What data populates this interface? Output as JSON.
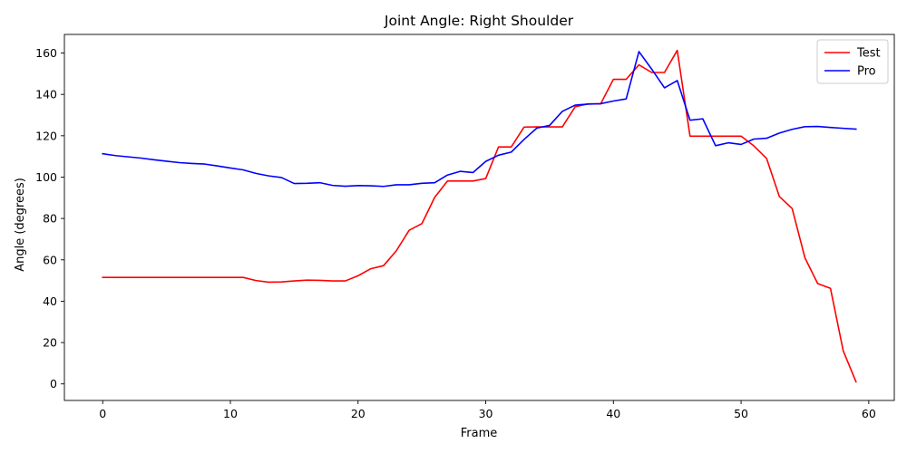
{
  "chart_data": {
    "type": "line",
    "title": "Joint Angle: Right Shoulder",
    "xlabel": "Frame",
    "ylabel": "Angle (degrees)",
    "xlim": [
      -3,
      62
    ],
    "ylim": [
      -8,
      169
    ],
    "xticks": [
      0,
      10,
      20,
      30,
      40,
      50,
      60
    ],
    "yticks": [
      0,
      20,
      40,
      60,
      80,
      100,
      120,
      140,
      160
    ],
    "grid": false,
    "legend_position": "top-right",
    "x": [
      0,
      1,
      2,
      3,
      4,
      5,
      6,
      7,
      8,
      9,
      10,
      11,
      12,
      13,
      14,
      15,
      16,
      17,
      18,
      19,
      20,
      21,
      22,
      23,
      24,
      25,
      26,
      27,
      28,
      29,
      30,
      31,
      32,
      33,
      34,
      35,
      36,
      37,
      38,
      39,
      40,
      41,
      42,
      43,
      44,
      45,
      46,
      47,
      48,
      49,
      50,
      51,
      52,
      53,
      54,
      55,
      56,
      57,
      58,
      59
    ],
    "series": [
      {
        "name": "Test",
        "color": "#ff0000",
        "values": [
          51.5,
          51.5,
          51.5,
          51.5,
          51.5,
          51.5,
          51.5,
          51.5,
          51.5,
          51.5,
          51.5,
          51.5,
          50.0,
          49.2,
          49.3,
          49.8,
          50.2,
          50.1,
          49.8,
          49.8,
          52.3,
          55.7,
          57.2,
          64.4,
          74.3,
          77.5,
          90.2,
          98.1,
          98.1,
          98.1,
          99.3,
          114.6,
          114.6,
          124.2,
          124.3,
          124.3,
          124.3,
          134.0,
          135.4,
          135.4,
          147.3,
          147.3,
          154.3,
          150.6,
          150.6,
          161.3,
          119.8,
          119.8,
          119.8,
          119.8,
          119.8,
          115.1,
          109.0,
          90.6,
          84.8,
          61.0,
          48.5,
          46.2,
          16.0,
          1.0
        ]
      },
      {
        "name": "Pro",
        "color": "#0000ff",
        "values": [
          111.3,
          110.4,
          109.8,
          109.2,
          108.4,
          107.7,
          107.0,
          106.6,
          106.3,
          105.4,
          104.4,
          103.5,
          101.8,
          100.6,
          99.8,
          96.9,
          97.0,
          97.3,
          96.0,
          95.6,
          95.9,
          95.8,
          95.5,
          96.3,
          96.3,
          97.0,
          97.3,
          101.0,
          102.8,
          102.2,
          107.6,
          110.6,
          112.1,
          118.2,
          123.7,
          125.0,
          131.8,
          134.8,
          135.3,
          135.5,
          136.8,
          137.8,
          160.7,
          152.2,
          143.2,
          146.7,
          127.5,
          128.2,
          115.2,
          116.6,
          115.8,
          118.4,
          118.8,
          121.3,
          123.1,
          124.4,
          124.5,
          124.0,
          123.6,
          123.2
        ]
      }
    ]
  }
}
